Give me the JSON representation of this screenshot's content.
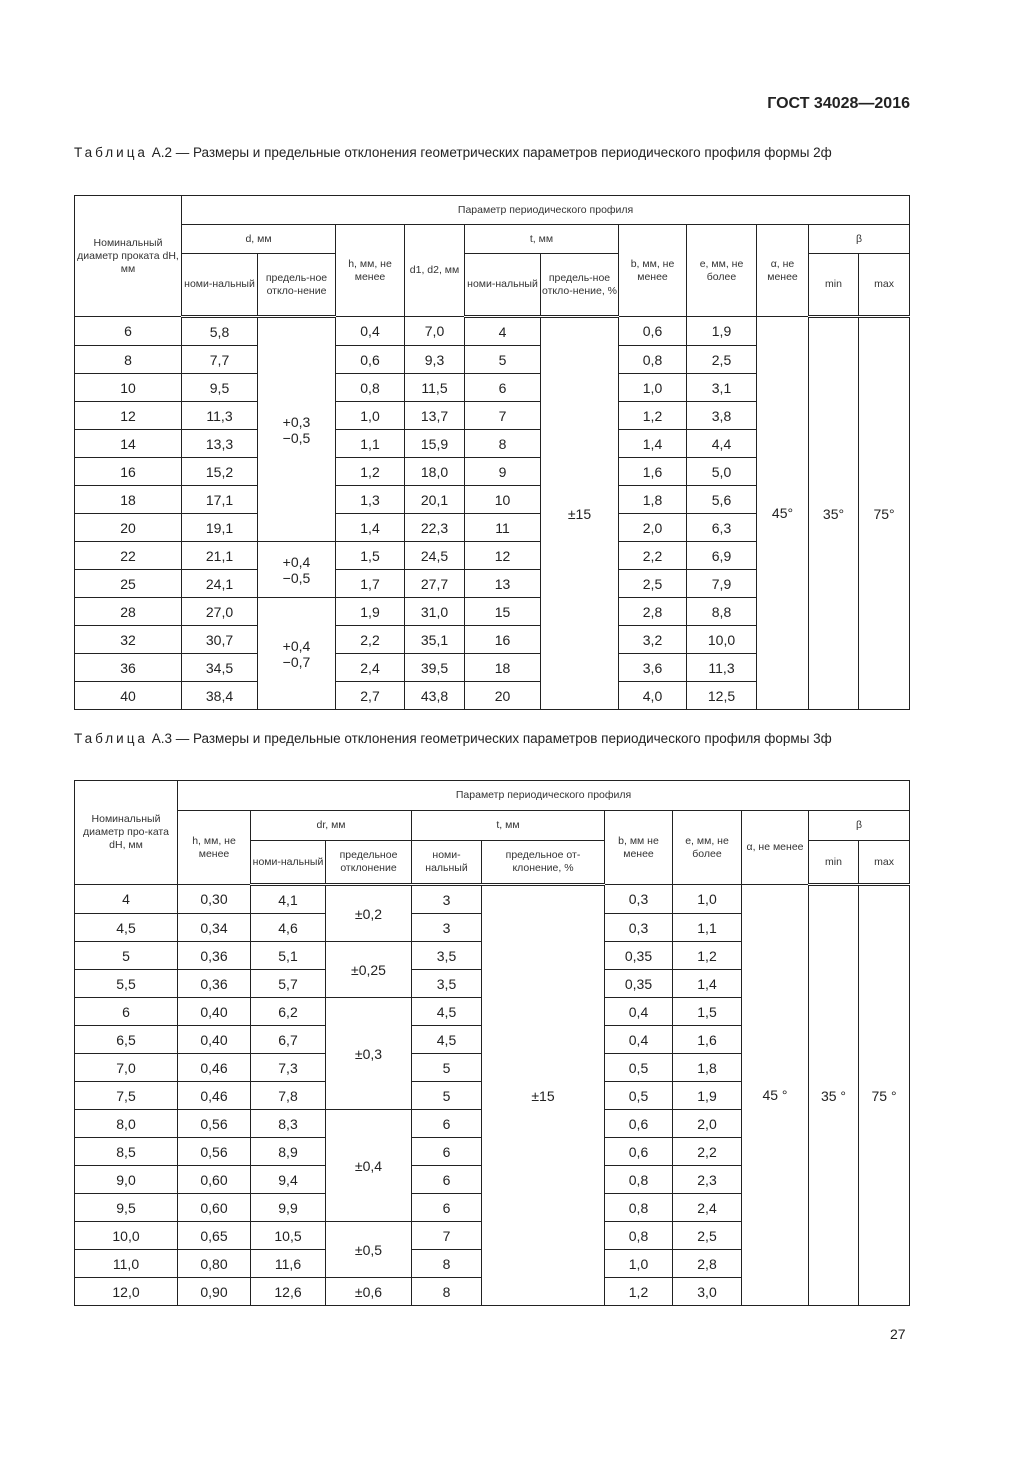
{
  "header": {
    "standard": "ГОСТ 34028—2016"
  },
  "page_number": "27",
  "table_a2": {
    "caption_prefix": "Таблица",
    "caption": " А.2 — Размеры и предельные отклонения геометрических параметров периодического профиля формы 2ф",
    "headers": {
      "nominal_diameter": "Номинальный диаметр проката dН, мм",
      "param_group": "Параметр периодического профиля",
      "d": "d, мм",
      "d_nom": "номи-нальный",
      "d_dev": "предель-ное откло-нение",
      "h": "h, мм, не менее",
      "d1d2": "d1, d2, мм",
      "t": "t, мм",
      "t_nom": "номи-нальный",
      "t_dev": "предель-ное откло-нение, %",
      "b": "b, мм, не менее",
      "e": "e, мм, не более",
      "alpha": "α, не менее",
      "beta": "β",
      "beta_min": "min",
      "beta_max": "max"
    },
    "rows": [
      [
        "6",
        "5,8",
        "0,4",
        "7,0",
        "4",
        "0,6",
        "1,9"
      ],
      [
        "8",
        "7,7",
        "0,6",
        "9,3",
        "5",
        "0,8",
        "2,5"
      ],
      [
        "10",
        "9,5",
        "0,8",
        "11,5",
        "6",
        "1,0",
        "3,1"
      ],
      [
        "12",
        "11,3",
        "1,0",
        "13,7",
        "7",
        "1,2",
        "3,8"
      ],
      [
        "14",
        "13,3",
        "1,1",
        "15,9",
        "8",
        "1,4",
        "4,4"
      ],
      [
        "16",
        "15,2",
        "1,2",
        "18,0",
        "9",
        "1,6",
        "5,0"
      ],
      [
        "18",
        "17,1",
        "1,3",
        "20,1",
        "10",
        "1,8",
        "5,6"
      ],
      [
        "20",
        "19,1",
        "1,4",
        "22,3",
        "11",
        "2,0",
        "6,3"
      ],
      [
        "22",
        "21,1",
        "1,5",
        "24,5",
        "12",
        "2,2",
        "6,9"
      ],
      [
        "25",
        "24,1",
        "1,7",
        "27,7",
        "13",
        "2,5",
        "7,9"
      ],
      [
        "28",
        "27,0",
        "1,9",
        "31,0",
        "15",
        "2,8",
        "8,8"
      ],
      [
        "32",
        "30,7",
        "2,2",
        "35,1",
        "16",
        "3,2",
        "10,0"
      ],
      [
        "36",
        "34,5",
        "2,4",
        "39,5",
        "18",
        "3,6",
        "11,3"
      ],
      [
        "40",
        "38,4",
        "2,7",
        "43,8",
        "20",
        "4,0",
        "12,5"
      ]
    ],
    "d_deviation_groups": [
      {
        "rows": 8,
        "value": "+0,3\n−0,5"
      },
      {
        "rows": 2,
        "value": "+0,4\n−0,5"
      },
      {
        "rows": 4,
        "value": "+0,4\n−0,7"
      }
    ],
    "t_deviation": "±15",
    "alpha": "45°",
    "beta_min": "35°",
    "beta_max": "75°"
  },
  "table_a3": {
    "caption_prefix": "Таблица",
    "caption": " А.3 — Размеры и предельные отклонения геометрических параметров периодического профиля формы 3ф",
    "headers": {
      "nominal_diameter": "Номинальный диаметр про-ката dН, мм",
      "param_group": "Параметр периодического профиля",
      "h": "h, мм, не менее",
      "dr": "dr, мм",
      "d_nom": "номи-нальный",
      "d_dev": "предельное отклонение",
      "t": "t, мм",
      "t_nom": "номи-нальный",
      "t_dev": "предельное от-клонение, %",
      "b": "b, мм не менее",
      "e": "e, мм, не более",
      "alpha": "α, не менее",
      "beta": "β",
      "beta_min": "min",
      "beta_max": "max"
    },
    "rows": [
      [
        "4",
        "0,30",
        "4,1",
        "3",
        "0,3",
        "1,0"
      ],
      [
        "4,5",
        "0,34",
        "4,6",
        "3",
        "0,3",
        "1,1"
      ],
      [
        "5",
        "0,36",
        "5,1",
        "3,5",
        "0,35",
        "1,2"
      ],
      [
        "5,5",
        "0,36",
        "5,7",
        "3,5",
        "0,35",
        "1,4"
      ],
      [
        "6",
        "0,40",
        "6,2",
        "4,5",
        "0,4",
        "1,5"
      ],
      [
        "6,5",
        "0,40",
        "6,7",
        "4,5",
        "0,4",
        "1,6"
      ],
      [
        "7,0",
        "0,46",
        "7,3",
        "5",
        "0,5",
        "1,8"
      ],
      [
        "7,5",
        "0,46",
        "7,8",
        "5",
        "0,5",
        "1,9"
      ],
      [
        "8,0",
        "0,56",
        "8,3",
        "6",
        "0,6",
        "2,0"
      ],
      [
        "8,5",
        "0,56",
        "8,9",
        "6",
        "0,6",
        "2,2"
      ],
      [
        "9,0",
        "0,60",
        "9,4",
        "6",
        "0,8",
        "2,3"
      ],
      [
        "9,5",
        "0,60",
        "9,9",
        "6",
        "0,8",
        "2,4"
      ],
      [
        "10,0",
        "0,65",
        "10,5",
        "7",
        "0,8",
        "2,5"
      ],
      [
        "11,0",
        "0,80",
        "11,6",
        "8",
        "1,0",
        "2,8"
      ],
      [
        "12,0",
        "0,90",
        "12,6",
        "8",
        "1,2",
        "3,0"
      ]
    ],
    "d_deviation_groups": [
      {
        "rows": 2,
        "value": "±0,2"
      },
      {
        "rows": 2,
        "value": "±0,25"
      },
      {
        "rows": 4,
        "value": "±0,3"
      },
      {
        "rows": 4,
        "value": "±0,4"
      },
      {
        "rows": 2,
        "value": "±0,5"
      },
      {
        "rows": 1,
        "value": "±0,6"
      }
    ],
    "t_deviation": "±15",
    "alpha": "45 °",
    "beta_min": "35 °",
    "beta_max": "75 °"
  }
}
